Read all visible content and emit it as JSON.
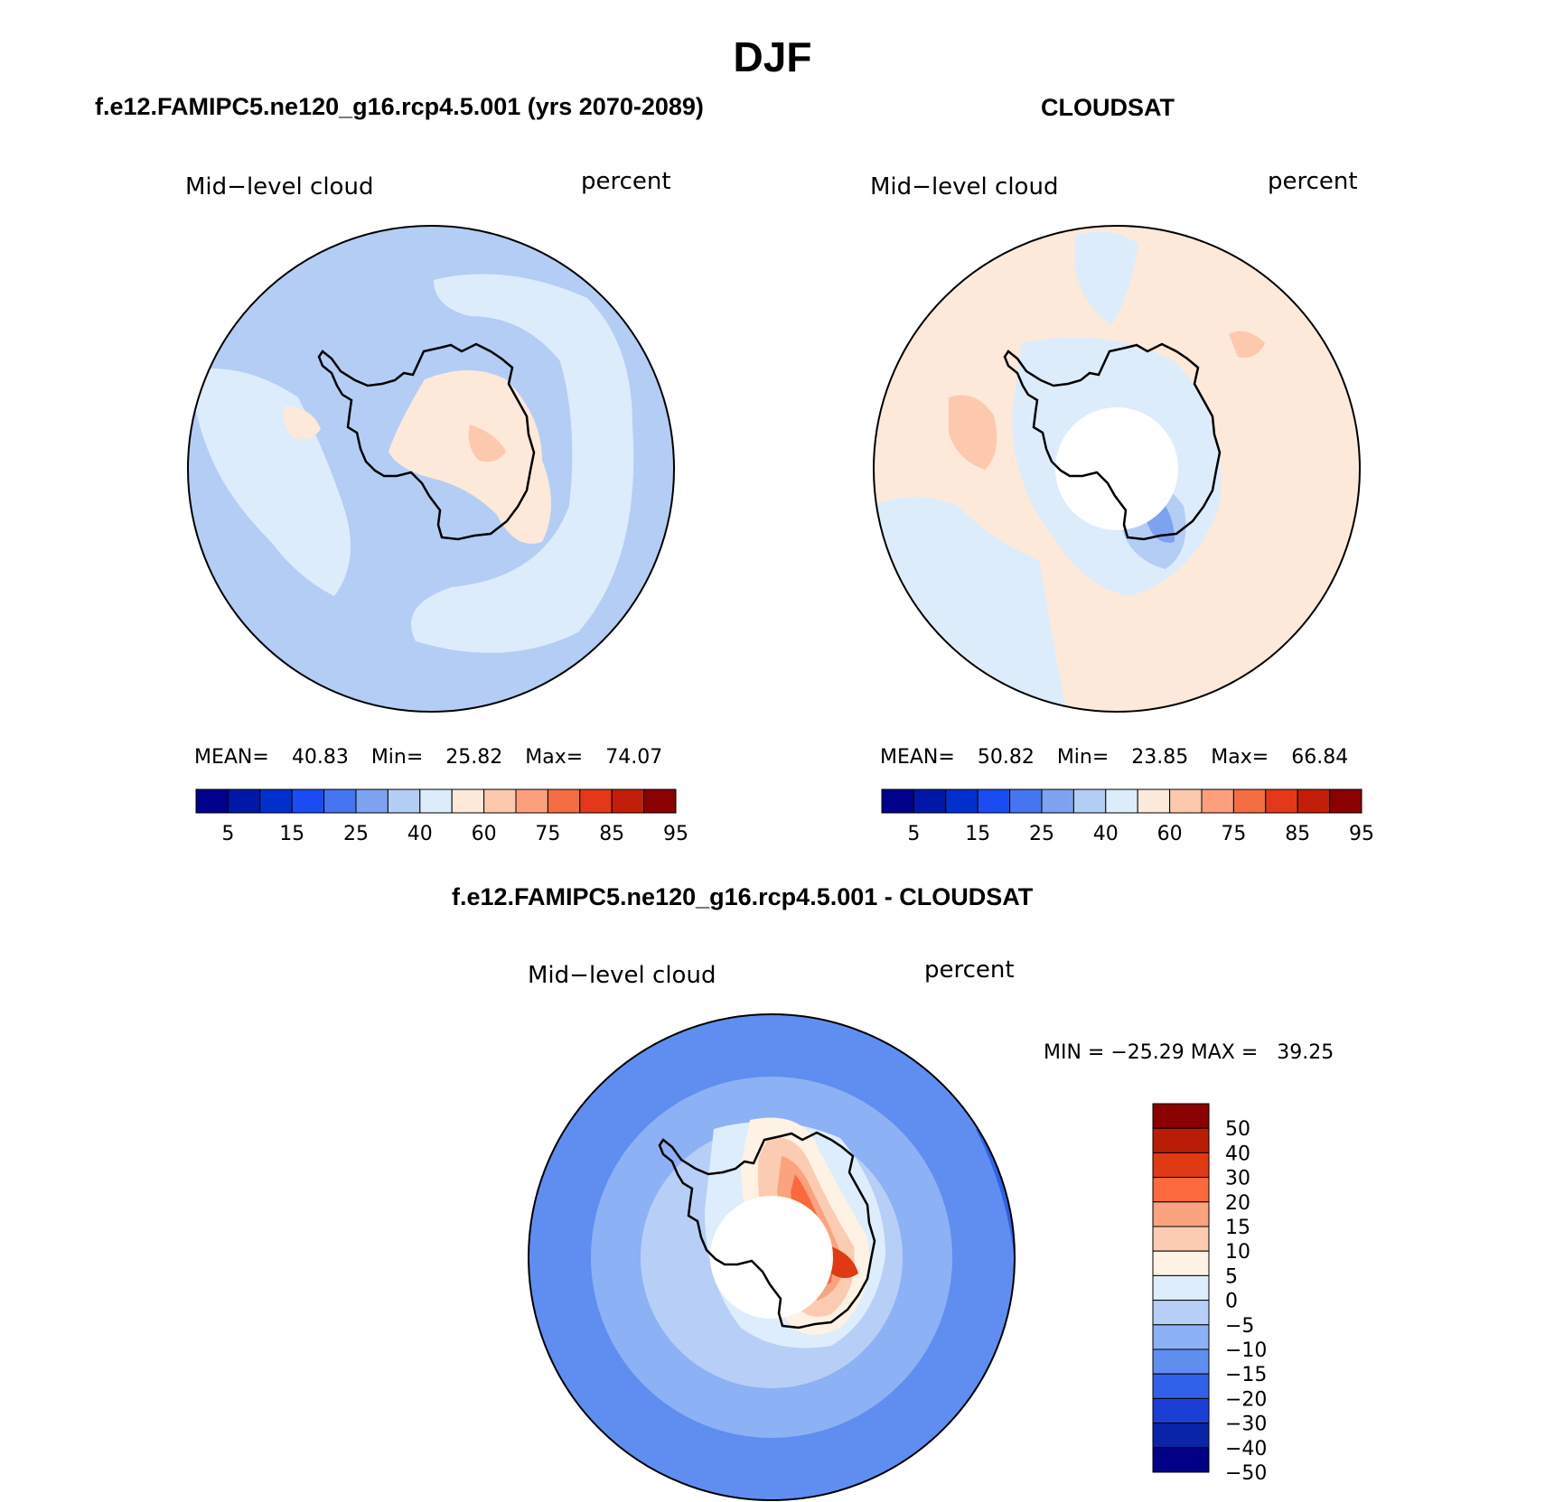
{
  "title": "DJF",
  "panels": [
    {
      "heading": "f.e12.FAMIPC5.ne120_g16.rcp4.5.001 (yrs 2070-2089)",
      "left_label": "Mid−level cloud",
      "right_label": "percent",
      "stats": {
        "mean_label": "MEAN=",
        "mean": "40.83",
        "min_label": "Min=",
        "min": "25.82",
        "max_label": "Max=",
        "max": "74.07"
      }
    },
    {
      "heading": "CLOUDSAT",
      "left_label": "Mid−level cloud",
      "right_label": "percent",
      "stats": {
        "mean_label": "MEAN=",
        "mean": "50.82",
        "min_label": "Min=",
        "min": "23.85",
        "max_label": "Max=",
        "max": "66.84"
      }
    },
    {
      "heading": "f.e12.FAMIPC5.ne120_g16.rcp4.5.001 - CLOUDSAT",
      "left_label": "Mid−level cloud",
      "right_label": "percent",
      "stats_text": "MIN = −25.29 MAX =   39.25"
    }
  ],
  "horizontal_colorbar": {
    "colors": [
      "#00008b",
      "#0018a8",
      "#0030cc",
      "#1a4cf2",
      "#4575f0",
      "#7da2f0",
      "#b4cdf5",
      "#dcecfb",
      "#fde9d9",
      "#fdc9ae",
      "#fb9f7d",
      "#f46d43",
      "#e4381a",
      "#c21e0a",
      "#8b0000"
    ],
    "labels": [
      "5",
      "15",
      "25",
      "40",
      "60",
      "75",
      "85",
      "95"
    ]
  },
  "vertical_colorbar": {
    "colors_top_to_bottom": [
      "#8b0000",
      "#b81e06",
      "#e03a12",
      "#fa6a3c",
      "#fba27e",
      "#fcccb2",
      "#fdf2e4",
      "#deedfb",
      "#b7cff7",
      "#8cb1f4",
      "#5f8ef0",
      "#2f62e8",
      "#1b3fd6",
      "#0a24a8",
      "#000087"
    ],
    "labels": [
      "50",
      "40",
      "30",
      "20",
      "15",
      "10",
      "5",
      "0",
      "−5",
      "−10",
      "−15",
      "−20",
      "−30",
      "−40",
      "−50"
    ]
  }
}
